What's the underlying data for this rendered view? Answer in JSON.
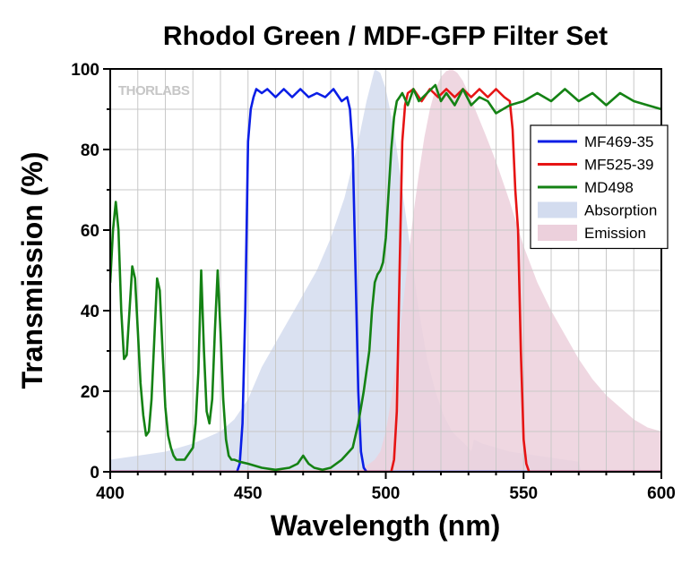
{
  "chart_data": {
    "type": "area",
    "title": "Rhodol Green / MDF-GFP Filter Set",
    "xlabel": "Wavelength (nm)",
    "ylabel": "Transmission (%)",
    "xlim": [
      400,
      600
    ],
    "ylim": [
      0,
      100
    ],
    "xticks": [
      400,
      450,
      500,
      550,
      600
    ],
    "yticks": [
      0,
      20,
      40,
      60,
      80,
      100
    ],
    "grid": true,
    "legend_position": "right",
    "watermark": "THORLABS",
    "series": [
      {
        "name": "Absorption",
        "kind": "area",
        "color": "#d3dcef",
        "x": [
          400,
          410,
          420,
          430,
          440,
          445,
          450,
          455,
          460,
          465,
          470,
          475,
          480,
          485,
          490,
          493,
          496,
          498,
          500,
          503,
          506,
          509,
          512,
          515,
          518,
          521,
          524,
          527,
          530,
          531,
          532,
          535,
          540,
          545,
          550,
          555,
          560,
          565,
          570,
          571
        ],
        "y": [
          3,
          4,
          5,
          7,
          10,
          13,
          18,
          26,
          32,
          38,
          44,
          50,
          58,
          68,
          82,
          92,
          100,
          99,
          95,
          85,
          70,
          55,
          40,
          28,
          20,
          14,
          10,
          8,
          6,
          5,
          8,
          7,
          6,
          5,
          4.5,
          4,
          3.5,
          3,
          2.5,
          0
        ]
      },
      {
        "name": "Emission",
        "kind": "area",
        "color": "#ecd0dc",
        "x": [
          490,
          492,
          494,
          496,
          498,
          500,
          502,
          504,
          506,
          508,
          510,
          512,
          514,
          516,
          518,
          520,
          522,
          524,
          526,
          528,
          530,
          533,
          536,
          540,
          545,
          550,
          555,
          560,
          565,
          570,
          575,
          580,
          585,
          590,
          595,
          600
        ],
        "y": [
          0,
          1,
          2,
          3,
          5,
          10,
          18,
          28,
          40,
          52,
          64,
          74,
          83,
          90,
          95,
          98,
          99.5,
          100,
          99,
          97,
          94,
          89,
          84,
          77,
          67,
          56,
          47,
          40,
          34,
          28,
          23,
          19,
          16,
          13,
          11,
          10
        ]
      },
      {
        "name": "MF469-35",
        "kind": "line",
        "color": "#0a1ee6",
        "x": [
          400,
          446,
          447,
          448,
          449,
          450,
          451,
          452,
          453,
          455,
          457,
          460,
          463,
          466,
          469,
          472,
          475,
          478,
          481,
          484,
          486,
          487,
          488,
          489,
          490,
          491,
          492,
          493,
          600
        ],
        "y": [
          0,
          0,
          2,
          12,
          40,
          82,
          90,
          93,
          95,
          94,
          95,
          93,
          95,
          93,
          95,
          93,
          94,
          93,
          95,
          92,
          93,
          90,
          80,
          50,
          20,
          5,
          1,
          0,
          0
        ]
      },
      {
        "name": "MF525-39",
        "kind": "line",
        "color": "#e61414",
        "x": [
          400,
          502,
          503,
          504,
          505,
          506,
          507,
          508,
          510,
          513,
          516,
          519,
          522,
          525,
          528,
          531,
          534,
          537,
          540,
          543,
          545,
          546,
          547,
          548,
          549,
          550,
          551,
          552,
          600
        ],
        "y": [
          0,
          0,
          3,
          15,
          50,
          82,
          91,
          94,
          95,
          92,
          95,
          93,
          95,
          93,
          95,
          93,
          95,
          93,
          95,
          93,
          92,
          85,
          70,
          60,
          30,
          8,
          2,
          0,
          0
        ]
      },
      {
        "name": "MD498",
        "kind": "line",
        "color": "#148214",
        "x": [
          400,
          401,
          402,
          403,
          404,
          405,
          406,
          407,
          408,
          409,
          410,
          411,
          412,
          413,
          414,
          415,
          416,
          417,
          418,
          419,
          420,
          421,
          422,
          423,
          424,
          425,
          427,
          430,
          431,
          432,
          433,
          434,
          435,
          436,
          437,
          438,
          439,
          440,
          441,
          442,
          443,
          444,
          445,
          447,
          450,
          455,
          460,
          465,
          468,
          470,
          471,
          472,
          474,
          477,
          480,
          484,
          488,
          490,
          492,
          494,
          495,
          496,
          497,
          498,
          499,
          500,
          502,
          503,
          504,
          505,
          506,
          508,
          510,
          512,
          515,
          518,
          520,
          522,
          525,
          528,
          531,
          534,
          537,
          540,
          545,
          550,
          555,
          560,
          565,
          570,
          575,
          580,
          585,
          590,
          595,
          600
        ],
        "y": [
          47,
          60,
          67,
          60,
          40,
          28,
          29,
          40,
          51,
          48,
          35,
          22,
          14,
          9,
          10,
          18,
          33,
          48,
          45,
          30,
          16,
          9,
          6,
          4,
          3,
          3,
          3,
          6,
          12,
          25,
          50,
          30,
          15,
          12,
          18,
          35,
          50,
          35,
          18,
          8,
          4,
          3,
          3,
          2.5,
          2,
          1,
          0.5,
          1,
          2,
          4,
          3,
          2,
          1,
          0.5,
          1,
          3,
          6,
          12,
          20,
          30,
          40,
          47,
          49,
          50,
          52,
          58,
          80,
          88,
          92,
          93,
          94,
          91,
          95,
          92,
          94,
          96,
          92,
          94,
          91,
          95,
          91,
          93,
          92,
          89,
          91,
          92,
          94,
          92,
          95,
          92,
          94,
          91,
          94,
          92,
          91,
          90
        ]
      }
    ]
  }
}
